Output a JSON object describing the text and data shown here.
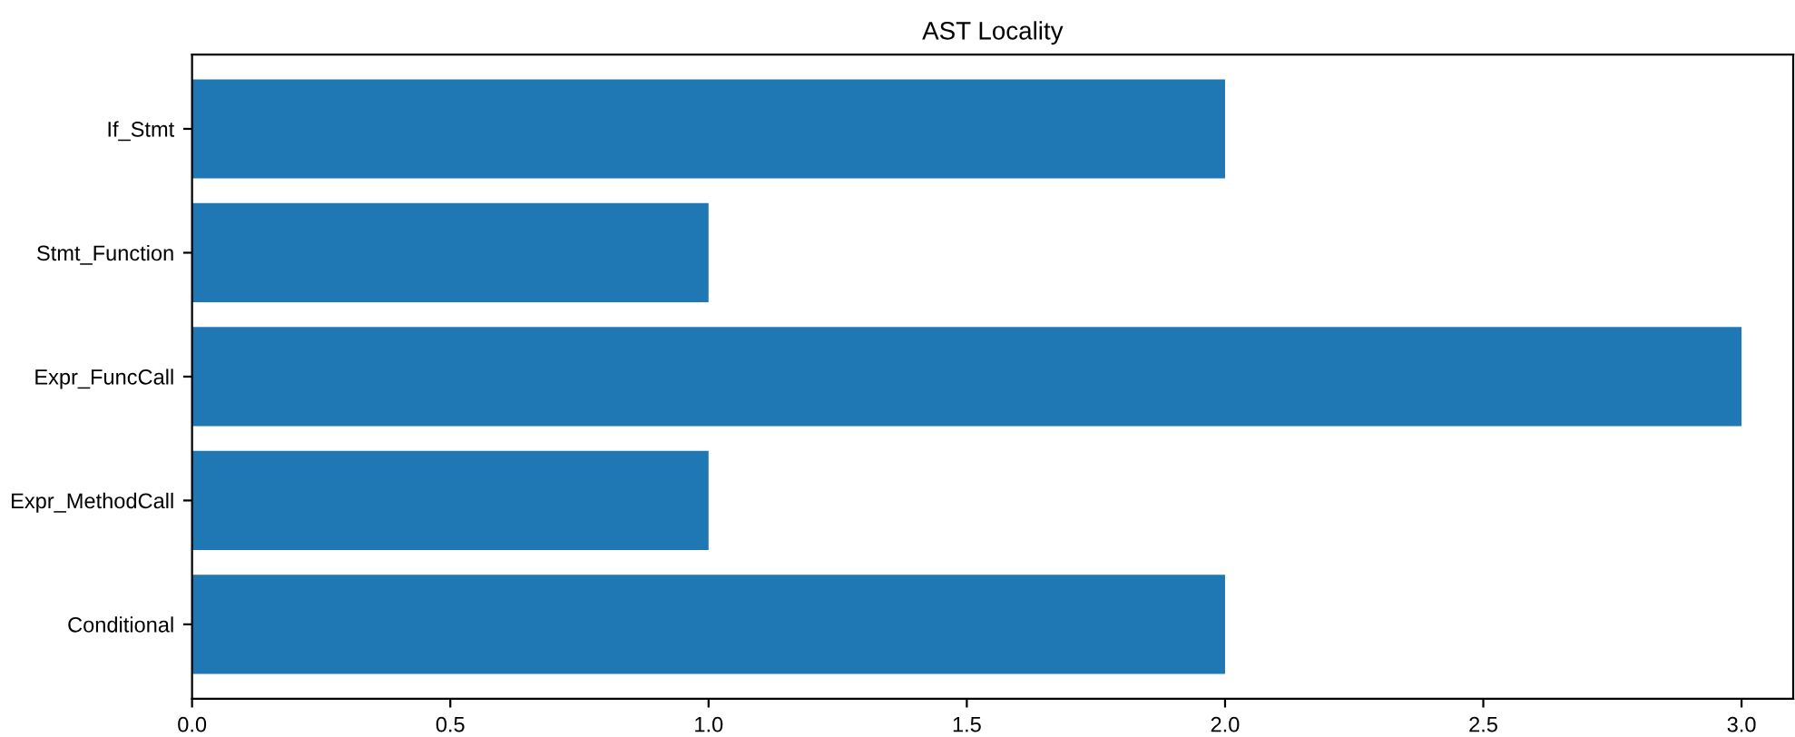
{
  "chart_data": {
    "type": "bar",
    "orientation": "horizontal",
    "title": "AST Locality",
    "categories": [
      "If_Stmt",
      "Stmt_Function",
      "Expr_FuncCall",
      "Expr_MethodCall",
      "Conditional"
    ],
    "values": [
      2,
      1,
      3,
      1,
      2
    ],
    "color": "#1f77b4",
    "xlim": [
      0,
      3.1
    ],
    "xticks": [
      {
        "value": 0,
        "label": "0.0"
      },
      {
        "value": 0.5,
        "label": "0.5"
      },
      {
        "value": 1,
        "label": "1.0"
      },
      {
        "value": 1.5,
        "label": "1.5"
      },
      {
        "value": 2,
        "label": "2.0"
      },
      {
        "value": 2.5,
        "label": "2.5"
      },
      {
        "value": 3,
        "label": "3.0"
      }
    ],
    "grid": false
  }
}
